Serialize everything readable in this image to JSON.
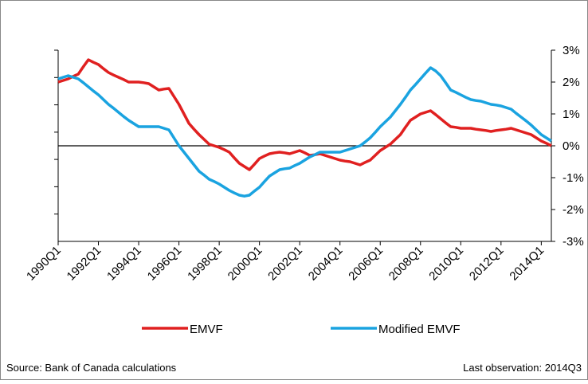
{
  "chart_data": {
    "type": "line",
    "source": "Source: Bank of Canada calculations",
    "note": "Last observation: 2014Q3",
    "categories": [
      "1990Q1",
      null,
      null,
      null,
      null,
      null,
      null,
      null,
      "1992Q1",
      null,
      null,
      null,
      null,
      null,
      null,
      null,
      "1994Q1",
      null,
      null,
      null,
      null,
      null,
      null,
      null,
      "1996Q1",
      null,
      null,
      null,
      null,
      null,
      null,
      null,
      "1998Q1",
      null,
      null,
      null,
      null,
      null,
      null,
      null,
      "2000Q1",
      null,
      null,
      null,
      null,
      null,
      null,
      null,
      "2002Q1",
      null,
      null,
      null,
      null,
      null,
      null,
      null,
      "2004Q1",
      null,
      null,
      null,
      null,
      null,
      null,
      null,
      "2006Q1",
      null,
      null,
      null,
      null,
      null,
      null,
      null,
      "2008Q1",
      null,
      null,
      null,
      null,
      null,
      null,
      null,
      "2010Q1",
      null,
      null,
      null,
      null,
      null,
      null,
      null,
      "2012Q1",
      null,
      null,
      null,
      null,
      null,
      null,
      null,
      "2014Q1",
      null,
      null
    ],
    "series": [
      {
        "name": "EMVF",
        "color": "#e02020",
        "axis": "y2",
        "values": [
          2.0,
          2.05,
          2.1,
          2.18,
          2.25,
          2.48,
          2.7,
          2.62,
          2.55,
          2.42,
          2.3,
          2.22,
          2.15,
          2.08,
          2.0,
          2.0,
          2.0,
          1.98,
          1.95,
          1.85,
          1.75,
          1.78,
          1.8,
          1.55,
          1.3,
          1.0,
          0.7,
          0.52,
          0.35,
          0.2,
          0.05,
          0.0,
          -0.05,
          -0.12,
          -0.2,
          -0.38,
          -0.55,
          -0.65,
          -0.75,
          -0.58,
          -0.4,
          -0.32,
          -0.25,
          -0.22,
          -0.2,
          -0.22,
          -0.25,
          -0.2,
          -0.15,
          -0.22,
          -0.3,
          -0.28,
          -0.25,
          -0.3,
          -0.35,
          -0.4,
          -0.45,
          -0.48,
          -0.5,
          -0.55,
          -0.6,
          -0.52,
          -0.45,
          -0.3,
          -0.15,
          -0.05,
          0.05,
          0.2,
          0.35,
          0.58,
          0.8,
          0.9,
          1.0,
          1.05,
          1.1,
          0.98,
          0.85,
          0.72,
          0.6,
          0.58,
          0.55,
          0.55,
          0.55,
          0.52,
          0.5,
          0.48,
          0.45,
          0.48,
          0.5,
          0.52,
          0.55,
          0.5,
          0.45,
          0.4,
          0.35,
          0.25,
          0.15,
          0.08,
          0.0
        ]
      },
      {
        "name": "Modified EMVF",
        "color": "#1aa3e0",
        "axis": "y2",
        "values": [
          2.1,
          2.15,
          2.2,
          2.15,
          2.1,
          1.98,
          1.85,
          1.72,
          1.6,
          1.45,
          1.3,
          1.18,
          1.05,
          0.92,
          0.8,
          0.7,
          0.6,
          0.6,
          0.6,
          0.6,
          0.6,
          0.55,
          0.5,
          0.25,
          0.0,
          -0.2,
          -0.4,
          -0.6,
          -0.8,
          -0.92,
          -1.05,
          -1.12,
          -1.2,
          -1.3,
          -1.4,
          -1.48,
          -1.55,
          -1.58,
          -1.55,
          -1.42,
          -1.3,
          -1.12,
          -0.95,
          -0.85,
          -0.75,
          -0.72,
          -0.7,
          -0.62,
          -0.55,
          -0.45,
          -0.35,
          -0.28,
          -0.2,
          -0.2,
          -0.2,
          -0.2,
          -0.2,
          -0.15,
          -0.1,
          -0.05,
          0.0,
          0.12,
          0.25,
          0.42,
          0.6,
          0.75,
          0.9,
          1.1,
          1.3,
          1.52,
          1.75,
          1.92,
          2.1,
          2.28,
          2.45,
          2.35,
          2.2,
          1.98,
          1.75,
          1.68,
          1.6,
          1.52,
          1.45,
          1.42,
          1.4,
          1.35,
          1.3,
          1.28,
          1.25,
          1.2,
          1.15,
          1.02,
          0.9,
          0.78,
          0.65,
          0.5,
          0.35,
          0.25,
          0.15
        ]
      }
    ],
    "y2lim": [
      -3,
      3
    ],
    "y2ticks": [
      {
        "value": -3,
        "label": "-3%"
      },
      {
        "value": -2,
        "label": "-2%"
      },
      {
        "value": -1,
        "label": "-1%"
      },
      {
        "value": 0,
        "label": "0%"
      },
      {
        "value": 1,
        "label": "1%"
      },
      {
        "value": 2,
        "label": "2%"
      },
      {
        "value": 3,
        "label": "3%"
      }
    ]
  }
}
